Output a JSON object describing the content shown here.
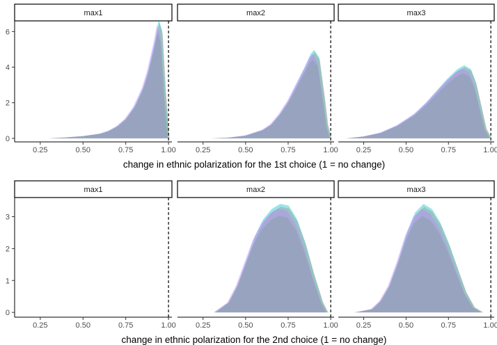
{
  "chart_data": [
    {
      "type": "area",
      "xlabel": "change in ethnic polarization for the 1st choice (1 = no change)",
      "ylabel": "",
      "xlim": [
        0.1,
        1.02
      ],
      "ylim": [
        -0.2,
        6.6
      ],
      "xticks": [
        0.25,
        0.5,
        0.75,
        1.0
      ],
      "xtick_labels": [
        "0.25",
        "0.50",
        "0.75",
        "1.00"
      ],
      "yticks": [
        0,
        2,
        4,
        6
      ],
      "ytick_labels": [
        "0",
        "2",
        "4",
        "6"
      ],
      "reference_line_x": 1.0,
      "grid": false,
      "legend": "none",
      "series_colors": [
        "#f8766d",
        "#7cae00",
        "#00bfc4",
        "#c77cff"
      ],
      "panels": [
        {
          "strip": "max1",
          "x": [
            0.3,
            0.4,
            0.5,
            0.6,
            0.65,
            0.7,
            0.75,
            0.8,
            0.85,
            0.88,
            0.9,
            0.92,
            0.94,
            0.96,
            0.98,
            1.0
          ],
          "y": [
            0.0,
            0.05,
            0.12,
            0.25,
            0.4,
            0.65,
            1.05,
            1.7,
            2.7,
            3.6,
            4.4,
            5.2,
            6.2,
            5.6,
            2.5,
            0.0
          ]
        },
        {
          "strip": "max2",
          "x": [
            0.3,
            0.4,
            0.5,
            0.6,
            0.65,
            0.7,
            0.75,
            0.8,
            0.85,
            0.88,
            0.9,
            0.93,
            0.96,
            0.98,
            1.0
          ],
          "y": [
            0.0,
            0.04,
            0.15,
            0.45,
            0.75,
            1.3,
            2.0,
            2.9,
            3.8,
            4.4,
            4.6,
            4.2,
            2.2,
            0.7,
            0.0
          ]
        },
        {
          "strip": "max3",
          "x": [
            0.15,
            0.25,
            0.35,
            0.45,
            0.55,
            0.62,
            0.68,
            0.74,
            0.8,
            0.84,
            0.88,
            0.91,
            0.94,
            0.97,
            1.0
          ],
          "y": [
            0.0,
            0.1,
            0.3,
            0.7,
            1.3,
            1.9,
            2.5,
            3.1,
            3.6,
            3.8,
            3.6,
            2.9,
            1.7,
            0.5,
            0.0
          ]
        }
      ]
    },
    {
      "type": "area",
      "xlabel": "change in ethnic polarization for the 2nd choice (1 = no change)",
      "ylabel": "",
      "xlim": [
        0.1,
        1.02
      ],
      "ylim": [
        -0.15,
        3.6
      ],
      "xticks": [
        0.25,
        0.5,
        0.75,
        1.0
      ],
      "xtick_labels": [
        "0.25",
        "0.50",
        "0.75",
        "1.00"
      ],
      "yticks": [
        0,
        1,
        2,
        3
      ],
      "ytick_labels": [
        "0",
        "1",
        "2",
        "3"
      ],
      "reference_line_x": 1.0,
      "grid": false,
      "legend": "none",
      "series_colors": [
        "#f8766d",
        "#7cae00",
        "#00bfc4",
        "#c77cff"
      ],
      "panels": [
        {
          "strip": "max1",
          "x": [],
          "y": []
        },
        {
          "strip": "max2",
          "x": [
            0.32,
            0.4,
            0.45,
            0.5,
            0.55,
            0.6,
            0.65,
            0.7,
            0.75,
            0.8,
            0.85,
            0.9,
            0.95,
            0.98
          ],
          "y": [
            0.0,
            0.3,
            0.8,
            1.5,
            2.2,
            2.7,
            3.0,
            3.15,
            3.1,
            2.7,
            2.0,
            1.1,
            0.3,
            0.0
          ]
        },
        {
          "strip": "max3",
          "x": [
            0.2,
            0.3,
            0.35,
            0.4,
            0.45,
            0.5,
            0.55,
            0.6,
            0.65,
            0.7,
            0.75,
            0.8,
            0.85,
            0.9,
            0.95
          ],
          "y": [
            0.0,
            0.1,
            0.35,
            0.8,
            1.5,
            2.3,
            2.9,
            3.15,
            3.0,
            2.6,
            2.0,
            1.3,
            0.6,
            0.15,
            0.0
          ]
        }
      ]
    }
  ]
}
